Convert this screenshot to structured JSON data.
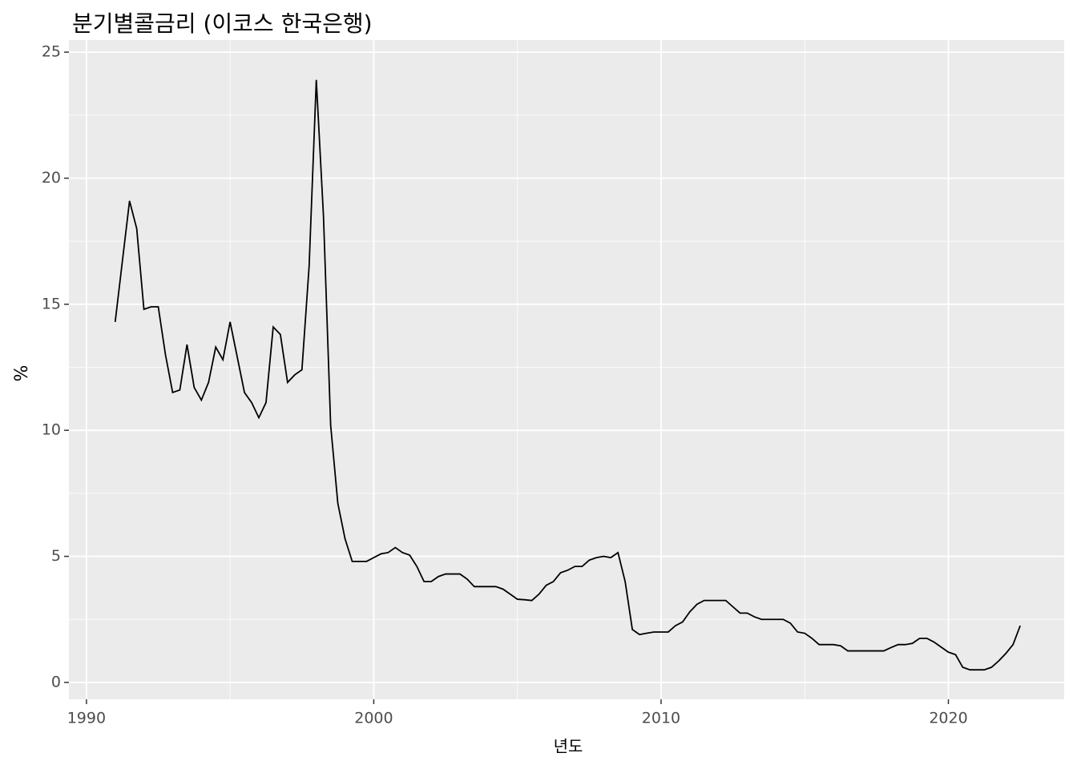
{
  "chart_data": {
    "type": "line",
    "title": "분기별콜금리 (이코스 한국은행)",
    "x_label": "년도",
    "y_label": "%",
    "x": [
      1991,
      1991.25,
      1991.5,
      1991.75,
      1992,
      1992.25,
      1992.5,
      1992.75,
      1993,
      1993.25,
      1993.5,
      1993.75,
      1994,
      1994.25,
      1994.5,
      1994.75,
      1995,
      1995.25,
      1995.5,
      1995.75,
      1996,
      1996.25,
      1996.5,
      1996.75,
      1997,
      1997.25,
      1997.5,
      1997.75,
      1998,
      1998.25,
      1998.5,
      1998.75,
      1999,
      1999.25,
      1999.5,
      1999.75,
      2000,
      2000.25,
      2000.5,
      2000.75,
      2001,
      2001.25,
      2001.5,
      2001.75,
      2002,
      2002.25,
      2002.5,
      2002.75,
      2003,
      2003.25,
      2003.5,
      2003.75,
      2004,
      2004.25,
      2004.5,
      2004.75,
      2005,
      2005.25,
      2005.5,
      2005.75,
      2006,
      2006.25,
      2006.5,
      2006.75,
      2007,
      2007.25,
      2007.5,
      2007.75,
      2008,
      2008.25,
      2008.5,
      2008.75,
      2009,
      2009.25,
      2009.5,
      2009.75,
      2010,
      2010.25,
      2010.5,
      2010.75,
      2011,
      2011.25,
      2011.5,
      2011.75,
      2012,
      2012.25,
      2012.5,
      2012.75,
      2013,
      2013.25,
      2013.5,
      2013.75,
      2014,
      2014.25,
      2014.5,
      2014.75,
      2015,
      2015.25,
      2015.5,
      2015.75,
      2016,
      2016.25,
      2016.5,
      2016.75,
      2017,
      2017.25,
      2017.5,
      2017.75,
      2018,
      2018.25,
      2018.5,
      2018.75,
      2019,
      2019.25,
      2019.5,
      2019.75,
      2020,
      2020.25,
      2020.5,
      2020.75,
      2021,
      2021.25,
      2021.5,
      2021.75,
      2022,
      2022.25,
      2022.5
    ],
    "series": [
      {
        "name": "%",
        "color": "#000000",
        "values": [
          14.3,
          16.7,
          19.1,
          18.0,
          14.8,
          14.9,
          14.9,
          13.0,
          11.5,
          11.6,
          13.4,
          11.7,
          11.2,
          11.9,
          13.3,
          12.8,
          14.3,
          12.9,
          11.5,
          11.1,
          10.5,
          11.1,
          14.1,
          13.8,
          11.9,
          12.2,
          12.4,
          16.5,
          23.9,
          18.5,
          10.2,
          7.1,
          5.7,
          4.8,
          4.8,
          4.8,
          4.95,
          5.1,
          5.15,
          5.35,
          5.15,
          5.05,
          4.6,
          4.0,
          4.0,
          4.2,
          4.3,
          4.3,
          4.3,
          4.1,
          3.8,
          3.8,
          3.8,
          3.8,
          3.7,
          3.5,
          3.3,
          3.28,
          3.25,
          3.5,
          3.85,
          4.0,
          4.35,
          4.45,
          4.6,
          4.6,
          4.85,
          4.95,
          5.0,
          4.95,
          5.15,
          4.0,
          2.1,
          1.9,
          1.95,
          2.0,
          2.0,
          2.0,
          2.25,
          2.4,
          2.8,
          3.1,
          3.25,
          3.25,
          3.25,
          3.25,
          3.0,
          2.75,
          2.75,
          2.6,
          2.5,
          2.5,
          2.5,
          2.5,
          2.35,
          2.0,
          1.95,
          1.75,
          1.5,
          1.5,
          1.5,
          1.45,
          1.25,
          1.25,
          1.25,
          1.25,
          1.25,
          1.25,
          1.38,
          1.5,
          1.5,
          1.55,
          1.75,
          1.75,
          1.6,
          1.4,
          1.2,
          1.1,
          0.6,
          0.5,
          0.5,
          0.5,
          0.6,
          0.85,
          1.15,
          1.5,
          2.25
        ]
      }
    ],
    "xlim": [
      1989.39,
      2024.03
    ],
    "xticks": [
      1990,
      2000,
      2010,
      2020
    ],
    "ylim": [
      -0.67,
      25.48
    ],
    "yticks": [
      0,
      5,
      10,
      15,
      20,
      25
    ],
    "grid": true,
    "panel_color": "#ebebeb"
  }
}
